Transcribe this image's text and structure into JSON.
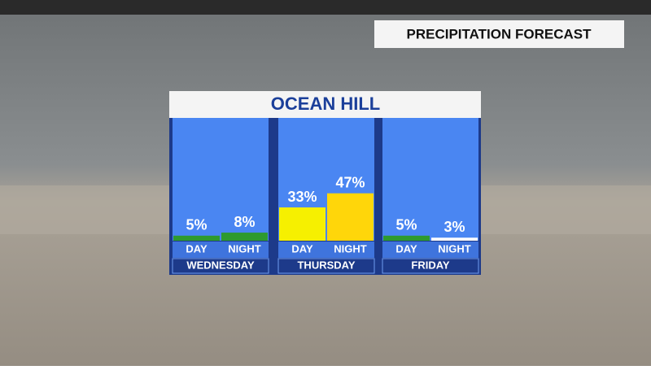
{
  "header": "PRECIPITATION FORECAST",
  "chart_data": {
    "type": "bar",
    "title": "OCEAN HILL",
    "categories": [
      "WEDNESDAY",
      "THURSDAY",
      "FRIDAY"
    ],
    "series": [
      {
        "name": "DAY",
        "colors": [
          "#2e9a2e",
          "#f6f000",
          "#2e9a2e"
        ],
        "values": [
          5,
          33,
          5
        ],
        "value_labels": [
          "5%",
          "33%",
          "5%"
        ]
      },
      {
        "name": "NIGHT",
        "colors": [
          "#2e9a2e",
          "#ffd60a",
          "#ffffff"
        ],
        "values": [
          8,
          47,
          3
        ],
        "value_labels": [
          "8%",
          "47%",
          "3%"
        ]
      }
    ],
    "ylim": [
      0,
      100
    ]
  }
}
